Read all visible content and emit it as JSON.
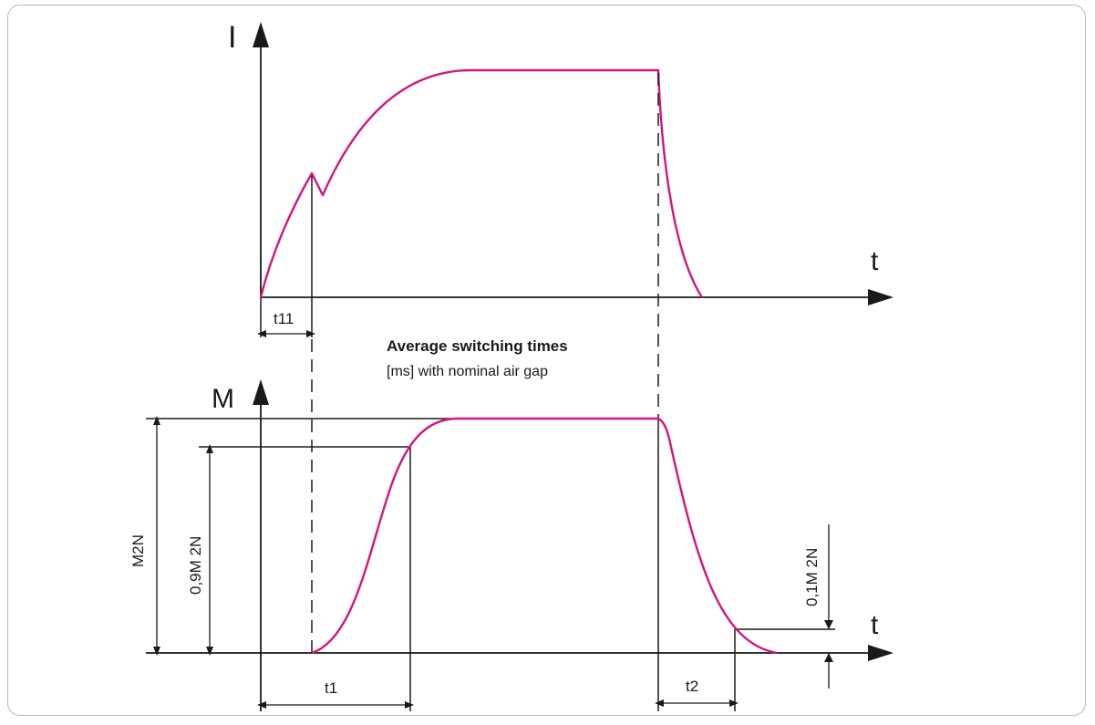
{
  "diagram": {
    "caption": {
      "title": "Average switching times",
      "subtitle": "[ms] with nominal air gap"
    },
    "current_plot": {
      "y_axis_label": "I",
      "x_axis_label": "t",
      "interval_label": "t11"
    },
    "torque_plot": {
      "y_axis_label": "M",
      "x_axis_label": "t",
      "rated_torque_label": "M2N",
      "ninety_pct_label": "0,9M 2N",
      "ten_pct_label": "0,1M 2N",
      "engage_time_label": "t1",
      "release_time_label": "t2"
    },
    "colors": {
      "curve": "#d4147f",
      "lines": "#1a1a1a",
      "frame": "#b8b8b8"
    }
  }
}
